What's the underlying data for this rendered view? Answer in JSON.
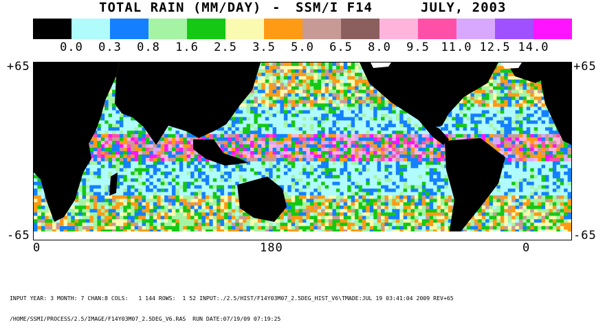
{
  "header": {
    "left": "TOTAL RAIN (MM/DAY)",
    "dash": "-",
    "sensor": "SSM/I F14",
    "date": "JULY, 2003"
  },
  "legend": {
    "colors": [
      "#000000",
      "#b0fbfb",
      "#1480ff",
      "#a4f4a4",
      "#14c814",
      "#fafab0",
      "#ff9a14",
      "#c89a96",
      "#8c5f5f",
      "#ffb4dc",
      "#ff50a8",
      "#d8a8ff",
      "#a050ff",
      "#ff14ff"
    ],
    "labels": [
      "0.0",
      "0.3",
      "0.8",
      "1.6",
      "2.5",
      "3.5",
      "5.0",
      "6.5",
      "8.0",
      "9.5",
      "11.0",
      "12.5",
      "14.0"
    ]
  },
  "axes": {
    "lat_top": "+65",
    "lat_bottom": "-65",
    "lon_left": "0",
    "lon_mid": "180",
    "lon_right": "0"
  },
  "footer": {
    "line1": "INPUT YEAR: 3 MONTH: 7 CHAN:8 COLS:   1 144 ROWS:  1 52 INPUT:./2.5/HIST/F14Y03M07_2.5DEG_HIST_V6\\TMADE:JUL 19 03:41:04 2009 REV+65",
    "line2": "/HOME/SSMI/PROCESS/2.5/IMAGE/F14Y03M07_2.5DEG_V6.RAS  RUN DATE:07/19/09 07:19:25"
  }
}
